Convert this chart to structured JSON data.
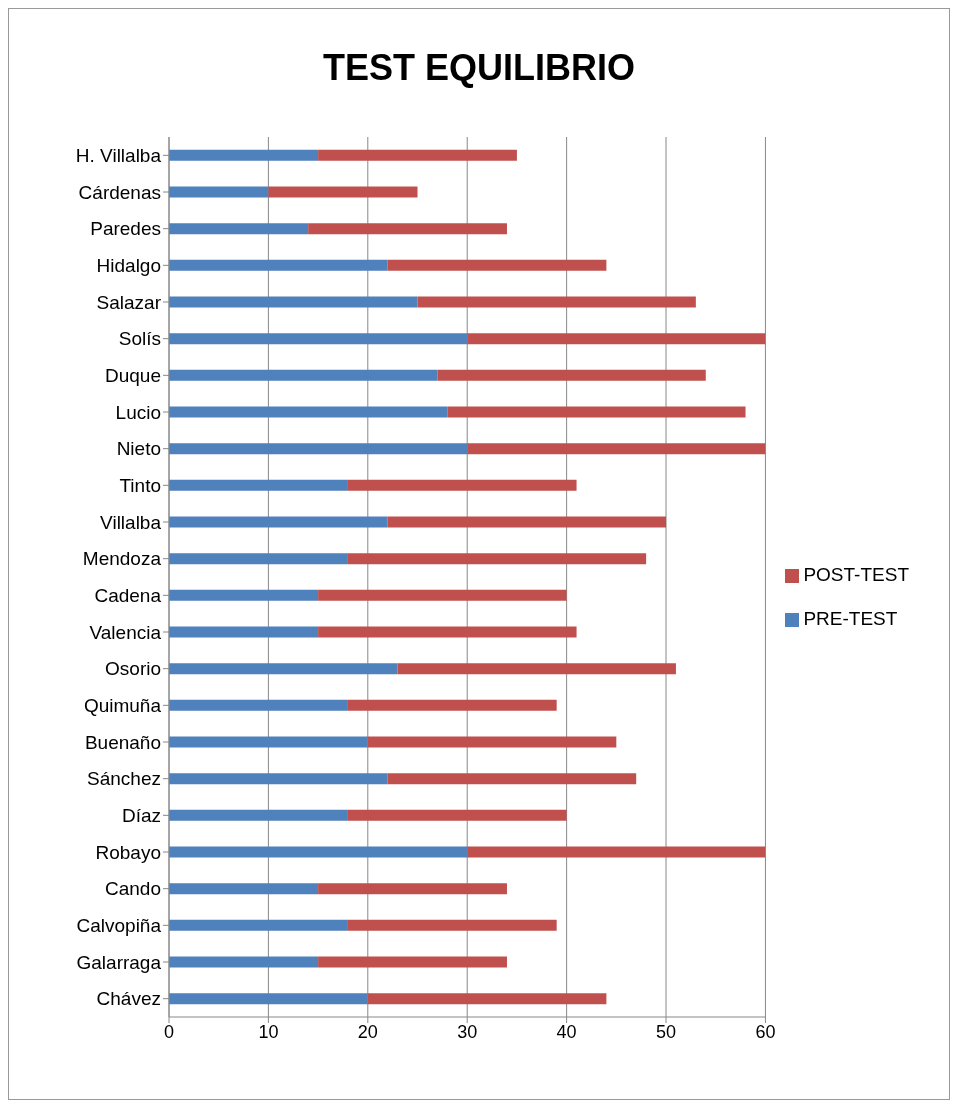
{
  "chart_data": {
    "type": "bar",
    "title": "TEST EQUILIBRIO",
    "orientation": "horizontal",
    "stacked": true,
    "categories": [
      "H. Villalba",
      "Cárdenas",
      "Paredes",
      "Hidalgo",
      "Salazar",
      "Solís",
      "Duque",
      "Lucio",
      "Nieto",
      "Tinto",
      "Villalba",
      "Mendoza",
      "Cadena",
      "Valencia",
      "Osorio",
      "Quimuña",
      "Buenaño",
      "Sánchez",
      "Díaz",
      "Robayo",
      "Cando",
      "Calvopiña",
      "Galarraga",
      "Chávez"
    ],
    "series": [
      {
        "name": "PRE-TEST",
        "color": "#4f81bd",
        "values": [
          15,
          10,
          14,
          22,
          25,
          30,
          27,
          28,
          30,
          18,
          22,
          18,
          15,
          15,
          23,
          18,
          20,
          22,
          18,
          30,
          15,
          18,
          15,
          20
        ]
      },
      {
        "name": "POST-TEST",
        "color": "#c0504d",
        "values": [
          20,
          15,
          20,
          22,
          28,
          30,
          27,
          30,
          30,
          23,
          28,
          30,
          25,
          26,
          28,
          21,
          25,
          25,
          22,
          30,
          19,
          21,
          19,
          24
        ]
      }
    ],
    "xlim": [
      0,
      60
    ],
    "xticks": [
      0,
      10,
      20,
      30,
      40,
      50,
      60
    ],
    "grid": "x",
    "legend": "right"
  }
}
